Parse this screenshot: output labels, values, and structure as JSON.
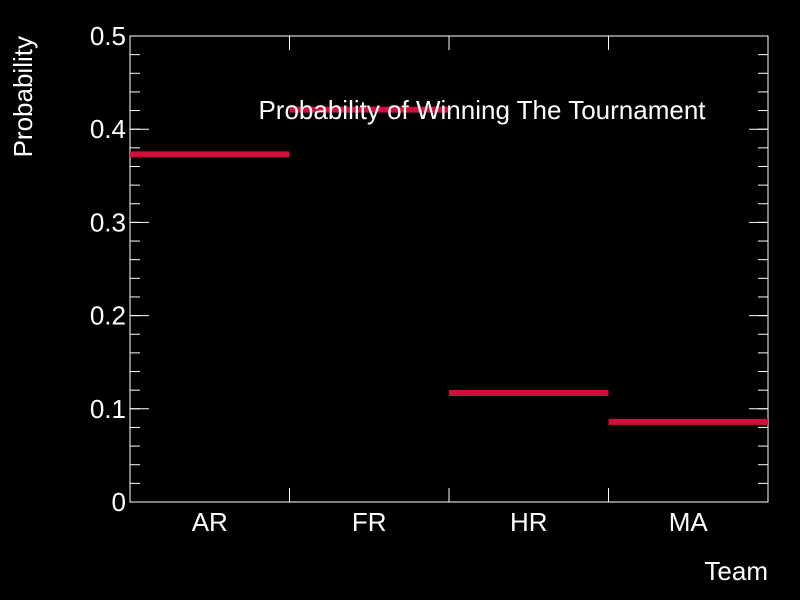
{
  "chart_data": {
    "type": "bar",
    "title": "Probability of Winning The Tournament",
    "xlabel": "Team",
    "ylabel": "Probability",
    "categories": [
      "AR",
      "FR",
      "HR",
      "MA"
    ],
    "values": [
      0.373,
      0.421,
      0.117,
      0.086
    ],
    "ylim": [
      0,
      0.5
    ],
    "yticks": [
      {
        "value": 0,
        "label": "0"
      },
      {
        "value": 0.1,
        "label": "0.1"
      },
      {
        "value": 0.2,
        "label": "0.2"
      },
      {
        "value": 0.3,
        "label": "0.3"
      },
      {
        "value": 0.4,
        "label": "0.4"
      },
      {
        "value": 0.5,
        "label": "0.5"
      }
    ],
    "grid": false,
    "colors": {
      "background": "#000000",
      "axis": "#ffffff",
      "series": "#d0103a",
      "text": "#ffffff"
    }
  }
}
